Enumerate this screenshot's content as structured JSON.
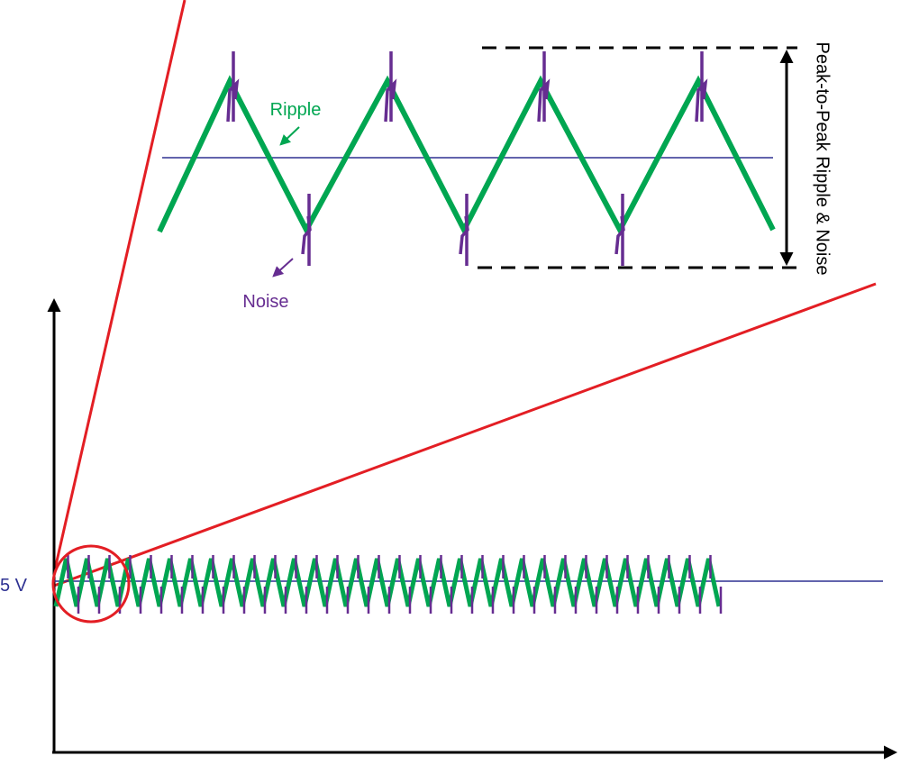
{
  "labels": {
    "ripple": "Ripple",
    "noise": "Noise",
    "peak_to_peak": "Peak-to-Peak Ripple & Noise",
    "voltage": "5 V"
  }
}
